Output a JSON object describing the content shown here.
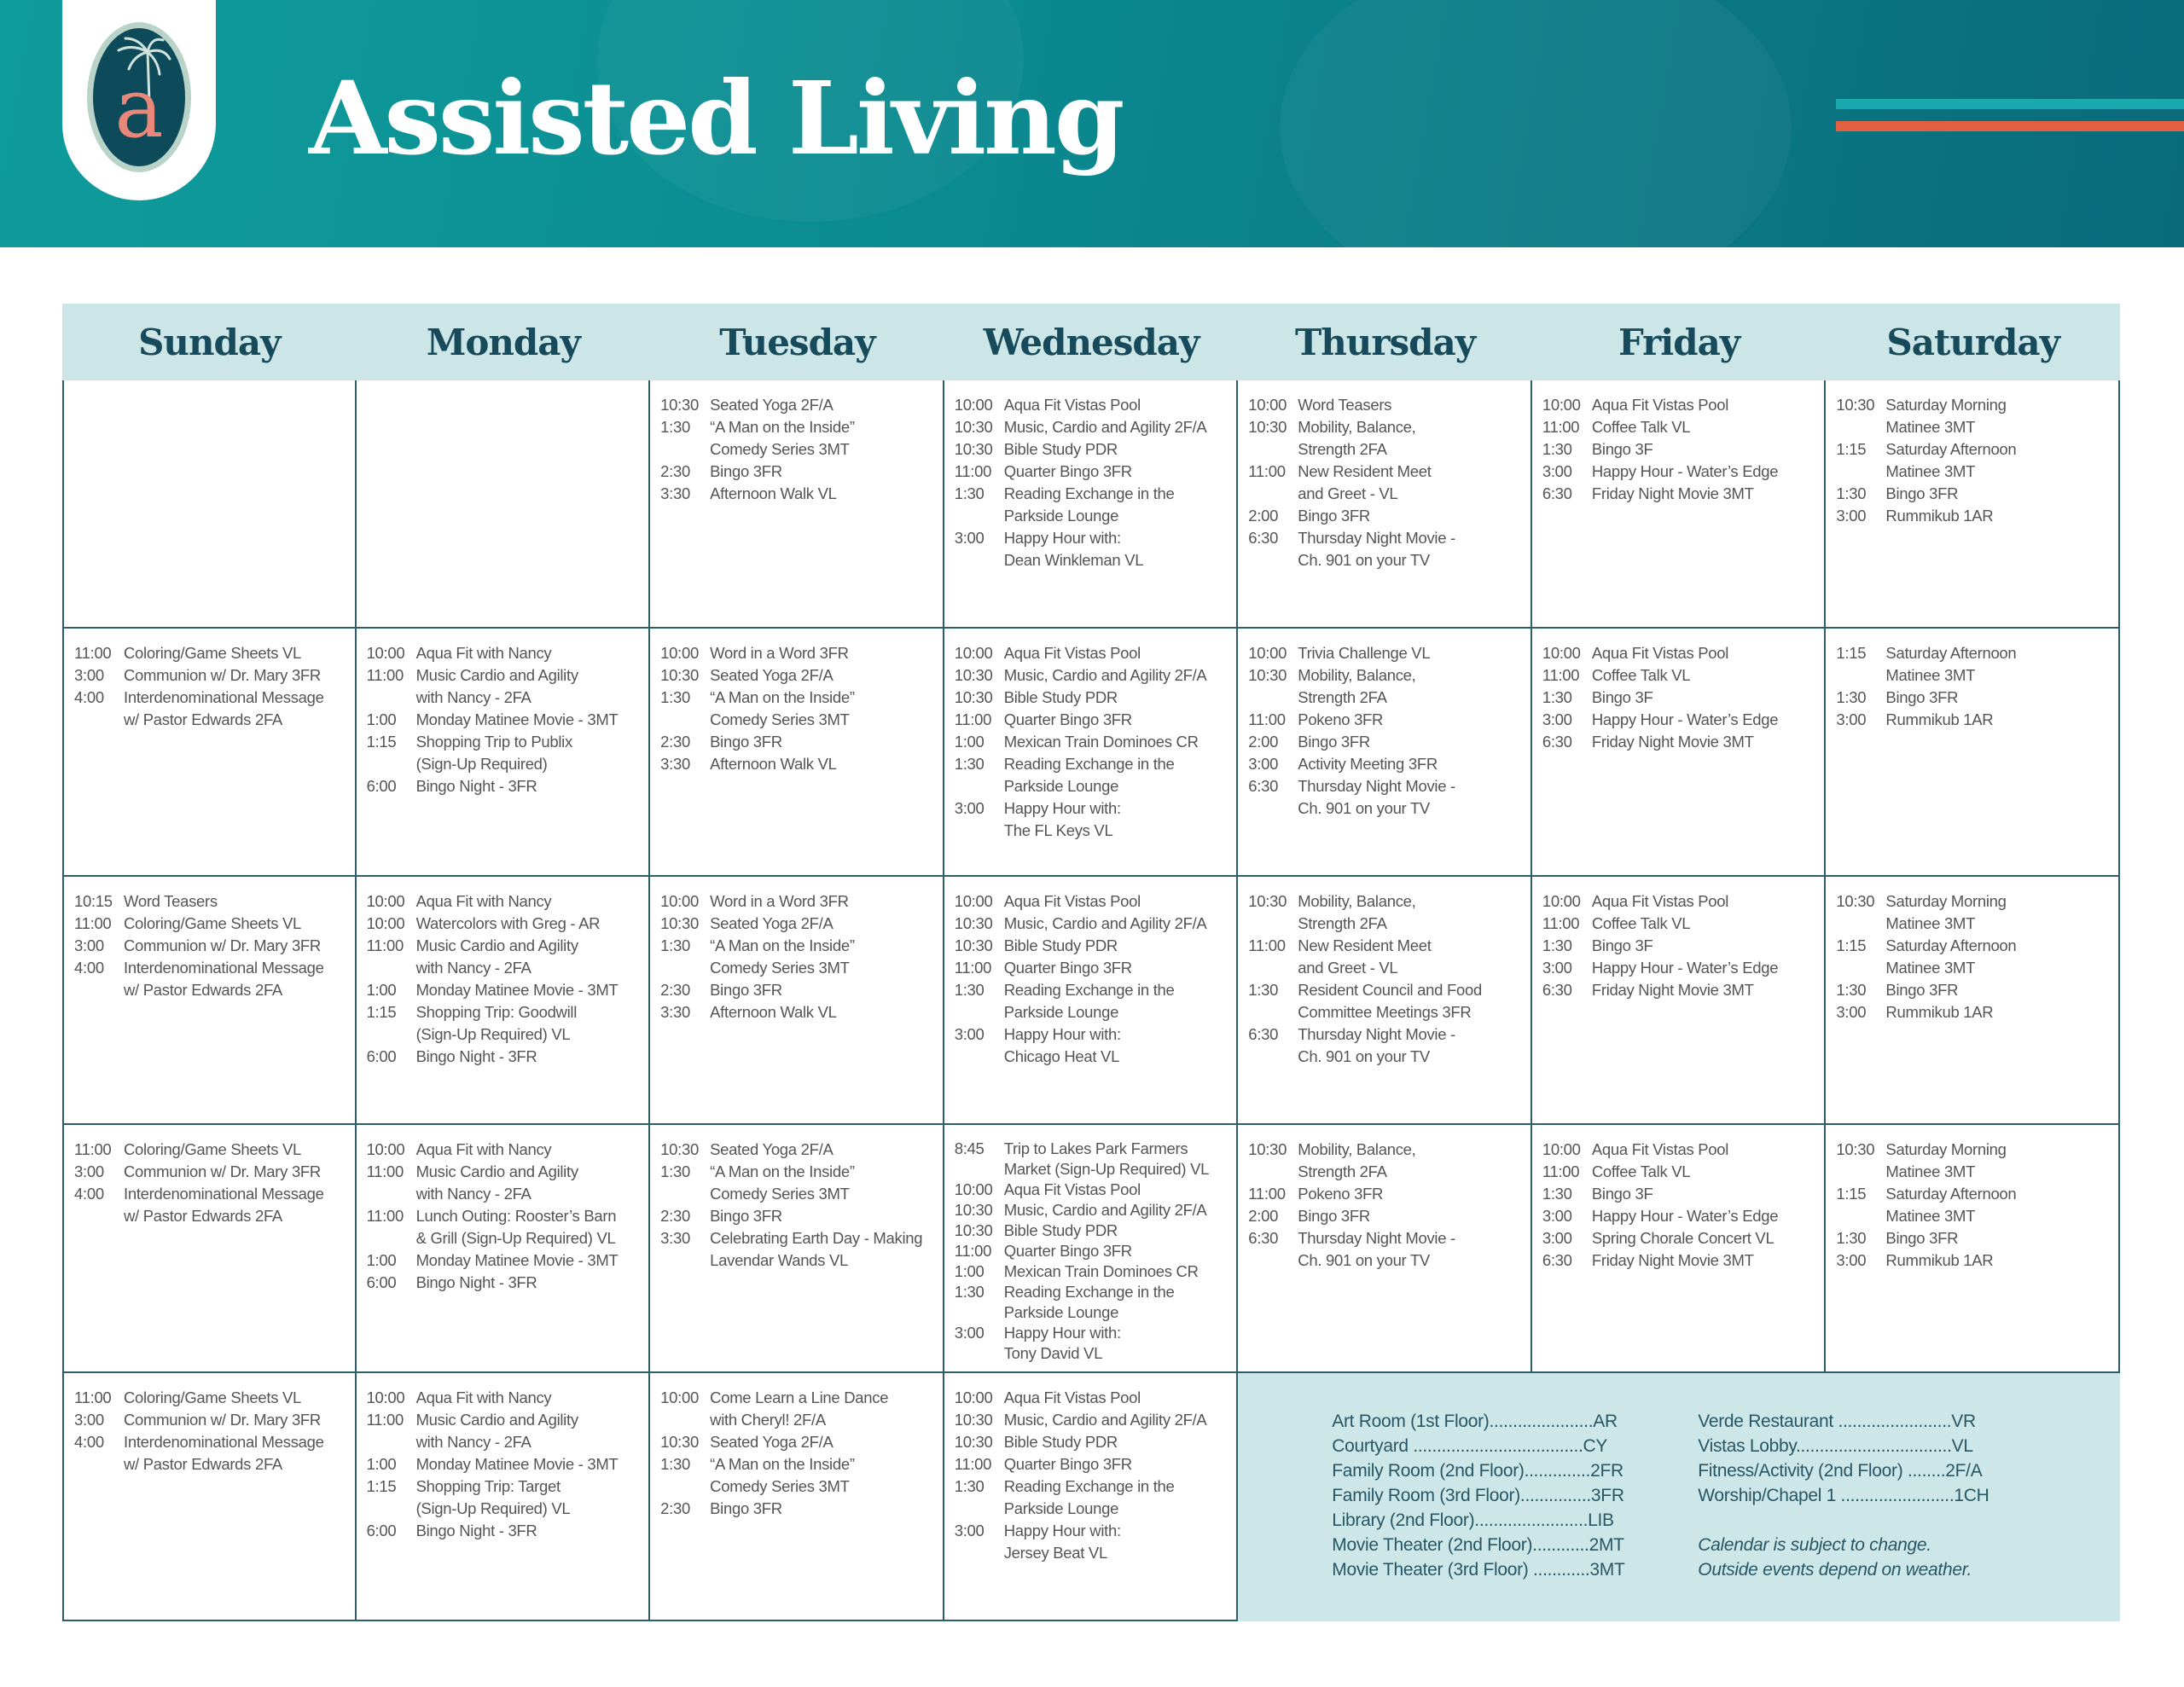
{
  "header": {
    "title": "Assisted Living",
    "logo_letter": "a",
    "colors": {
      "banner": "#0b8a90",
      "accent_teal": "#1aa9ae",
      "accent_orange": "#e0603f",
      "logo_letter": "#e9877b"
    }
  },
  "days": [
    "Sunday",
    "Monday",
    "Tuesday",
    "Wednesday",
    "Thursday",
    "Friday",
    "Saturday"
  ],
  "weeks": [
    {
      "days": [
        {
          "events": []
        },
        {
          "events": []
        },
        {
          "events": [
            {
              "time": "10:30",
              "text": "Seated Yoga 2F/A"
            },
            {
              "time": "1:30",
              "text": "“A Man on the Inside”\nComedy Series 3MT"
            },
            {
              "time": "2:30",
              "text": "Bingo 3FR"
            },
            {
              "time": "3:30",
              "text": "Afternoon Walk VL"
            }
          ]
        },
        {
          "events": [
            {
              "time": "10:00",
              "text": "Aqua Fit Vistas Pool"
            },
            {
              "time": "10:30",
              "text": "Music, Cardio and Agility 2F/A"
            },
            {
              "time": "10:30",
              "text": "Bible Study PDR"
            },
            {
              "time": "11:00",
              "text": "Quarter Bingo 3FR"
            },
            {
              "time": "1:30",
              "text": "Reading Exchange in the\nParkside Lounge"
            },
            {
              "time": "3:00",
              "text": "Happy Hour with:\nDean Winkleman VL"
            }
          ]
        },
        {
          "events": [
            {
              "time": "10:00",
              "text": "Word Teasers"
            },
            {
              "time": "10:30",
              "text": "Mobility, Balance,\nStrength 2FA"
            },
            {
              "time": "11:00",
              "text": "New Resident Meet\nand Greet - VL"
            },
            {
              "time": "2:00",
              "text": "Bingo 3FR"
            },
            {
              "time": "6:30",
              "text": "Thursday Night Movie -\nCh. 901 on your TV"
            }
          ]
        },
        {
          "events": [
            {
              "time": "10:00",
              "text": "Aqua Fit Vistas Pool"
            },
            {
              "time": "11:00",
              "text": "Coffee Talk VL"
            },
            {
              "time": "1:30",
              "text": "Bingo 3F"
            },
            {
              "time": "3:00",
              "text": "Happy Hour - Water’s Edge"
            },
            {
              "time": "6:30",
              "text": "Friday Night Movie 3MT"
            }
          ]
        },
        {
          "events": [
            {
              "time": "10:30",
              "text": "Saturday Morning\nMatinee 3MT"
            },
            {
              "time": "1:15",
              "text": "Saturday Afternoon\nMatinee 3MT"
            },
            {
              "time": "1:30",
              "text": "Bingo 3FR"
            },
            {
              "time": "3:00",
              "text": "Rummikub 1AR"
            }
          ]
        }
      ]
    },
    {
      "days": [
        {
          "events": [
            {
              "time": "11:00",
              "text": "Coloring/Game Sheets VL"
            },
            {
              "time": "3:00",
              "text": "Communion w/ Dr. Mary 3FR"
            },
            {
              "time": "4:00",
              "text": "Interdenominational Message\nw/ Pastor Edwards 2FA"
            }
          ]
        },
        {
          "events": [
            {
              "time": "10:00",
              "text": "Aqua Fit with Nancy"
            },
            {
              "time": "11:00",
              "text": "Music Cardio and Agility\nwith Nancy - 2FA"
            },
            {
              "time": "1:00",
              "text": "Monday Matinee Movie - 3MT"
            },
            {
              "time": "1:15",
              "text": "Shopping Trip to Publix\n(Sign-Up Required)"
            },
            {
              "time": "6:00",
              "text": "Bingo Night - 3FR"
            }
          ]
        },
        {
          "events": [
            {
              "time": "10:00",
              "text": "Word in a Word 3FR"
            },
            {
              "time": "10:30",
              "text": "Seated Yoga 2F/A"
            },
            {
              "time": "1:30",
              "text": "“A Man on the Inside”\nComedy Series 3MT"
            },
            {
              "time": "2:30",
              "text": "Bingo 3FR"
            },
            {
              "time": "3:30",
              "text": "Afternoon Walk VL"
            }
          ]
        },
        {
          "events": [
            {
              "time": "10:00",
              "text": "Aqua Fit Vistas Pool"
            },
            {
              "time": "10:30",
              "text": "Music, Cardio and Agility 2F/A"
            },
            {
              "time": "10:30",
              "text": "Bible Study PDR"
            },
            {
              "time": "11:00",
              "text": "Quarter Bingo 3FR"
            },
            {
              "time": "1:00",
              "text": "Mexican Train Dominoes CR"
            },
            {
              "time": "1:30",
              "text": "Reading Exchange in the\nParkside Lounge"
            },
            {
              "time": "3:00",
              "text": "Happy Hour with:\nThe FL Keys VL"
            }
          ]
        },
        {
          "events": [
            {
              "time": "10:00",
              "text": "Trivia Challenge VL"
            },
            {
              "time": "10:30",
              "text": "Mobility, Balance,\nStrength 2FA"
            },
            {
              "time": "11:00",
              "text": "Pokeno 3FR"
            },
            {
              "time": "2:00",
              "text": "Bingo 3FR"
            },
            {
              "time": "3:00",
              "text": "Activity Meeting 3FR"
            },
            {
              "time": "6:30",
              "text": "Thursday Night Movie -\nCh. 901 on your TV"
            }
          ]
        },
        {
          "events": [
            {
              "time": "10:00",
              "text": "Aqua Fit Vistas Pool"
            },
            {
              "time": "11:00",
              "text": "Coffee Talk VL"
            },
            {
              "time": "1:30",
              "text": "Bingo 3F"
            },
            {
              "time": "3:00",
              "text": "Happy Hour - Water’s Edge"
            },
            {
              "time": "6:30",
              "text": "Friday Night Movie 3MT"
            }
          ]
        },
        {
          "events": [
            {
              "time": "1:15",
              "text": "Saturday Afternoon\nMatinee 3MT"
            },
            {
              "time": "1:30",
              "text": "Bingo 3FR"
            },
            {
              "time": "3:00",
              "text": "Rummikub 1AR"
            }
          ]
        }
      ]
    },
    {
      "days": [
        {
          "events": [
            {
              "time": "10:15",
              "text": "Word Teasers"
            },
            {
              "time": "11:00",
              "text": "Coloring/Game Sheets VL"
            },
            {
              "time": "3:00",
              "text": "Communion w/ Dr. Mary 3FR"
            },
            {
              "time": "4:00",
              "text": "Interdenominational Message\nw/ Pastor Edwards 2FA"
            }
          ]
        },
        {
          "events": [
            {
              "time": "10:00",
              "text": "Aqua Fit with Nancy"
            },
            {
              "time": "10:00",
              "text": "Watercolors with Greg - AR"
            },
            {
              "time": "11:00",
              "text": "Music Cardio and Agility\nwith Nancy - 2FA"
            },
            {
              "time": "1:00",
              "text": "Monday Matinee Movie - 3MT"
            },
            {
              "time": "1:15",
              "text": "Shopping Trip: Goodwill\n(Sign-Up Required) VL"
            },
            {
              "time": "6:00",
              "text": "Bingo Night - 3FR"
            }
          ]
        },
        {
          "events": [
            {
              "time": "10:00",
              "text": "Word in a Word 3FR"
            },
            {
              "time": "10:30",
              "text": "Seated Yoga 2F/A"
            },
            {
              "time": "1:30",
              "text": "“A Man on the Inside”\nComedy Series 3MT"
            },
            {
              "time": "2:30",
              "text": "Bingo 3FR"
            },
            {
              "time": "3:30",
              "text": "Afternoon Walk VL"
            }
          ]
        },
        {
          "events": [
            {
              "time": "10:00",
              "text": "Aqua Fit Vistas Pool"
            },
            {
              "time": "10:30",
              "text": "Music, Cardio and Agility 2F/A"
            },
            {
              "time": "10:30",
              "text": "Bible Study PDR"
            },
            {
              "time": "11:00",
              "text": "Quarter Bingo 3FR"
            },
            {
              "time": "1:30",
              "text": "Reading Exchange in the\nParkside Lounge"
            },
            {
              "time": "3:00",
              "text": "Happy Hour with:\nChicago Heat VL"
            }
          ]
        },
        {
          "events": [
            {
              "time": "10:30",
              "text": "Mobility, Balance,\nStrength 2FA"
            },
            {
              "time": "11:00",
              "text": "New Resident Meet\nand Greet - VL"
            },
            {
              "time": "1:30",
              "text": "Resident Council and Food\nCommittee Meetings 3FR"
            },
            {
              "time": "6:30",
              "text": "Thursday Night Movie -\nCh. 901 on your TV"
            }
          ]
        },
        {
          "events": [
            {
              "time": "10:00",
              "text": "Aqua Fit Vistas Pool"
            },
            {
              "time": "11:00",
              "text": "Coffee Talk VL"
            },
            {
              "time": "1:30",
              "text": "Bingo 3F"
            },
            {
              "time": "3:00",
              "text": "Happy Hour - Water’s Edge"
            },
            {
              "time": "6:30",
              "text": "Friday Night Movie 3MT"
            }
          ]
        },
        {
          "events": [
            {
              "time": "10:30",
              "text": "Saturday Morning\nMatinee 3MT"
            },
            {
              "time": "1:15",
              "text": "Saturday Afternoon\nMatinee 3MT"
            },
            {
              "time": "1:30",
              "text": "Bingo 3FR"
            },
            {
              "time": "3:00",
              "text": "Rummikub 1AR"
            }
          ]
        }
      ]
    },
    {
      "days": [
        {
          "events": [
            {
              "time": "11:00",
              "text": "Coloring/Game Sheets VL"
            },
            {
              "time": "3:00",
              "text": "Communion w/ Dr. Mary 3FR"
            },
            {
              "time": "4:00",
              "text": "Interdenominational Message\nw/ Pastor Edwards 2FA"
            }
          ]
        },
        {
          "events": [
            {
              "time": "10:00",
              "text": "Aqua Fit with Nancy"
            },
            {
              "time": "11:00",
              "text": "Music Cardio and Agility\nwith Nancy - 2FA"
            },
            {
              "time": "11:00",
              "text": "Lunch Outing: Rooster’s Barn\n& Grill (Sign-Up Required) VL"
            },
            {
              "time": "1:00",
              "text": "Monday Matinee Movie - 3MT"
            },
            {
              "time": "6:00",
              "text": "Bingo Night - 3FR"
            }
          ]
        },
        {
          "events": [
            {
              "time": "10:30",
              "text": "Seated Yoga 2F/A"
            },
            {
              "time": "1:30",
              "text": "“A Man on the Inside”\nComedy Series 3MT"
            },
            {
              "time": "2:30",
              "text": "Bingo 3FR"
            },
            {
              "time": "3:30",
              "text": "Celebrating Earth Day - Making\nLavendar Wands VL"
            }
          ]
        },
        {
          "tight": true,
          "events": [
            {
              "time": "8:45",
              "text": "Trip to Lakes Park Farmers\nMarket (Sign-Up Required) VL"
            },
            {
              "time": "10:00",
              "text": "Aqua Fit Vistas Pool"
            },
            {
              "time": "10:30",
              "text": "Music, Cardio and Agility 2F/A"
            },
            {
              "time": "10:30",
              "text": "Bible Study PDR"
            },
            {
              "time": "11:00",
              "text": "Quarter Bingo 3FR"
            },
            {
              "time": "1:00",
              "text": "Mexican Train Dominoes CR"
            },
            {
              "time": "1:30",
              "text": "Reading Exchange in the\nParkside Lounge"
            },
            {
              "time": "3:00",
              "text": "Happy Hour with:\nTony David VL"
            }
          ]
        },
        {
          "events": [
            {
              "time": "10:30",
              "text": "Mobility, Balance,\nStrength 2FA"
            },
            {
              "time": "11:00",
              "text": "Pokeno 3FR"
            },
            {
              "time": "2:00",
              "text": "Bingo 3FR"
            },
            {
              "time": "6:30",
              "text": "Thursday Night Movie -\nCh. 901 on your TV"
            }
          ]
        },
        {
          "events": [
            {
              "time": "10:00",
              "text": "Aqua Fit Vistas Pool"
            },
            {
              "time": "11:00",
              "text": "Coffee Talk VL"
            },
            {
              "time": "1:30",
              "text": "Bingo 3F"
            },
            {
              "time": "3:00",
              "text": "Happy Hour - Water’s Edge"
            },
            {
              "time": "3:00",
              "text": "Spring Chorale Concert VL"
            },
            {
              "time": "6:30",
              "text": "Friday Night Movie 3MT"
            }
          ]
        },
        {
          "events": [
            {
              "time": "10:30",
              "text": "Saturday Morning\nMatinee 3MT"
            },
            {
              "time": "1:15",
              "text": "Saturday Afternoon\nMatinee 3MT"
            },
            {
              "time": "1:30",
              "text": "Bingo 3FR"
            },
            {
              "time": "3:00",
              "text": "Rummikub 1AR"
            }
          ]
        }
      ]
    },
    {
      "days": [
        {
          "events": [
            {
              "time": "11:00",
              "text": "Coloring/Game Sheets VL"
            },
            {
              "time": "3:00",
              "text": "Communion w/ Dr. Mary 3FR"
            },
            {
              "time": "4:00",
              "text": "Interdenominational Message\nw/ Pastor Edwards 2FA"
            }
          ]
        },
        {
          "events": [
            {
              "time": "10:00",
              "text": "Aqua Fit with Nancy"
            },
            {
              "time": "11:00",
              "text": "Music Cardio and Agility\nwith Nancy - 2FA"
            },
            {
              "time": "1:00",
              "text": "Monday Matinee Movie - 3MT"
            },
            {
              "time": "1:15",
              "text": "Shopping Trip: Target\n(Sign-Up Required) VL"
            },
            {
              "time": "6:00",
              "text": "Bingo Night - 3FR"
            }
          ]
        },
        {
          "events": [
            {
              "time": "10:00",
              "text": "Come Learn a Line Dance\nwith Cheryl! 2F/A"
            },
            {
              "time": "10:30",
              "text": "Seated Yoga 2F/A"
            },
            {
              "time": "1:30",
              "text": "“A Man on the Inside”\nComedy Series 3MT"
            },
            {
              "time": "2:30",
              "text": "Bingo 3FR"
            }
          ]
        },
        {
          "events": [
            {
              "time": "10:00",
              "text": "Aqua Fit Vistas Pool"
            },
            {
              "time": "10:30",
              "text": "Music, Cardio and Agility 2F/A"
            },
            {
              "time": "10:30",
              "text": "Bible Study PDR"
            },
            {
              "time": "11:00",
              "text": "Quarter Bingo 3FR"
            },
            {
              "time": "1:30",
              "text": "Reading Exchange in the\nParkside Lounge"
            },
            {
              "time": "3:00",
              "text": "Happy Hour with:\nJersey Beat VL"
            }
          ]
        }
      ]
    }
  ],
  "legend": {
    "left": [
      "Art Room (1st Floor)......................AR",
      "Courtyard ....................................CY",
      "Family Room (2nd Floor)..............2FR",
      "Family Room (3rd Floor)...............3FR",
      "Library (2nd Floor)........................LIB",
      "Movie Theater (2nd Floor)............2MT",
      "Movie Theater (3rd Floor) ............3MT"
    ],
    "right": [
      "Verde Restaurant ........................VR",
      "Vistas Lobby.................................VL",
      "Fitness/Activity (2nd Floor) ........2F/A",
      "Worship/Chapel 1 ........................1CH"
    ],
    "notes": [
      "Calendar is subject to change.",
      "Outside events depend on weather."
    ]
  }
}
